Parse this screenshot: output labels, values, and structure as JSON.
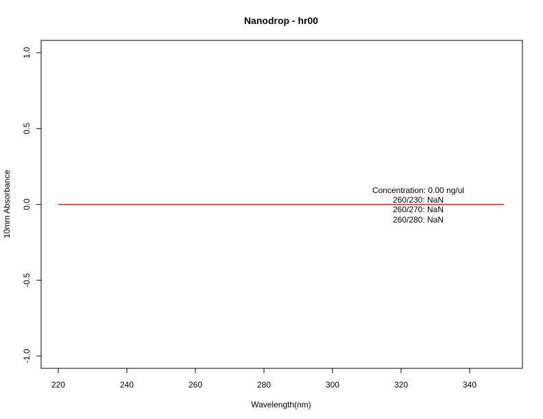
{
  "chart_data": {
    "type": "line",
    "title": "Nanodrop - hr00",
    "xlabel": "Wavelength(nm)",
    "ylabel": "10mm Absorbance",
    "xlim": [
      220,
      350
    ],
    "ylim": [
      -1.0,
      1.0
    ],
    "x_ticks": [
      220,
      240,
      260,
      280,
      300,
      320,
      340
    ],
    "x_tick_labels": [
      "220",
      "240",
      "260",
      "280",
      "300",
      "320",
      "340"
    ],
    "y_ticks": [
      -1.0,
      -0.5,
      0.0,
      0.5,
      1.0
    ],
    "y_tick_labels": [
      "-1.0",
      "-0.5",
      "0.0",
      "0.5",
      "1.0"
    ],
    "grid": false,
    "series": [
      {
        "color": "#ff0000",
        "x": [
          220,
          350
        ],
        "y": [
          0.0,
          0.0
        ]
      }
    ],
    "annotations": [
      "Concentration: 0.00 ng/ul",
      "260/230: NaN",
      "260/270: NaN",
      "260/280: NaN"
    ]
  }
}
